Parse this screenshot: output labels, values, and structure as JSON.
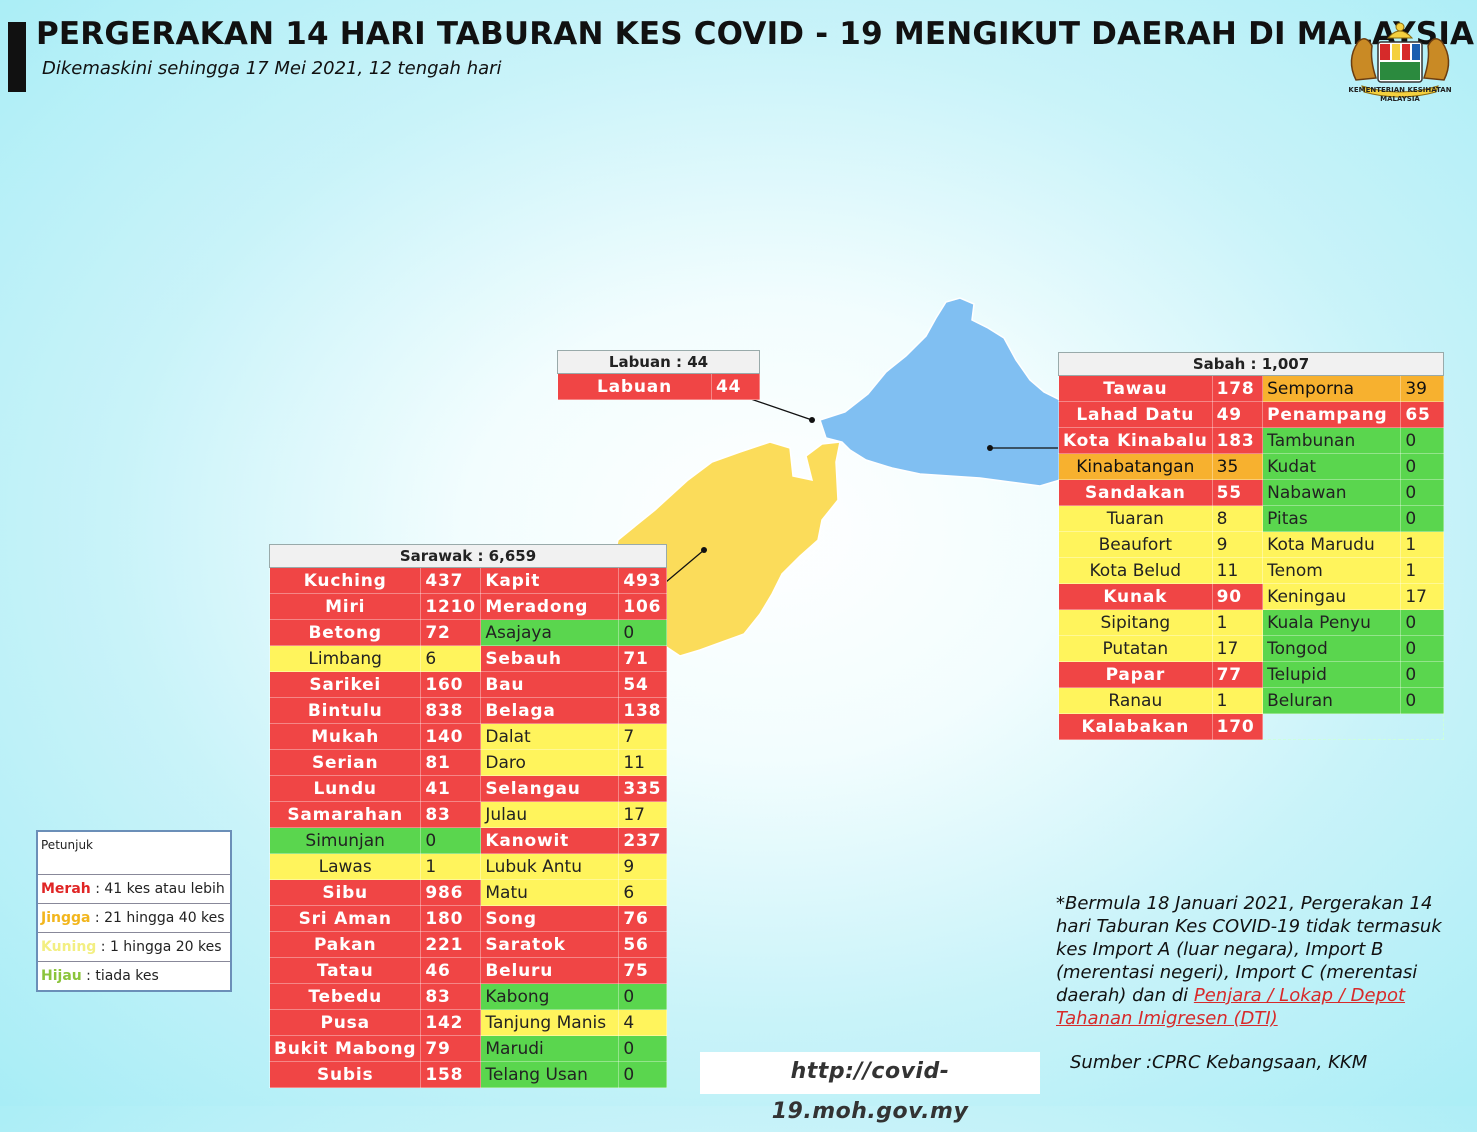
{
  "header": {
    "title": "PERGERAKAN 14 HARI TABURAN KES COVID - 19 MENGIKUT DAERAH DI MALAYSIA",
    "subtitle": "Dikemaskini sehingga 17 Mei 2021, 12 tengah hari",
    "logo_text_1": "KEMENTERIAN KESIHATAN",
    "logo_text_2": "MALAYSIA"
  },
  "colors": {
    "merah": "#f04545",
    "jingga": "#f7b12f",
    "kuning": "#fff45c",
    "hijau": "#5ad64e",
    "sabah_map": "#80bff2",
    "sarawak_map": "#fbdc5a"
  },
  "labuan": {
    "title": "Labuan : 44",
    "rows": [
      {
        "name": "Labuan",
        "cases": "44",
        "level": "red"
      }
    ]
  },
  "sabah": {
    "title": "Sabah : 1,007",
    "rows": [
      [
        {
          "name": "Tawau",
          "cases": "178",
          "level": "red"
        },
        {
          "name": "Semporna",
          "cases": "39",
          "level": "org"
        }
      ],
      [
        {
          "name": "Lahad Datu",
          "cases": "49",
          "level": "red"
        },
        {
          "name": "Penampang",
          "cases": "65",
          "level": "red"
        }
      ],
      [
        {
          "name": "Kota Kinabalu",
          "cases": "183",
          "level": "red"
        },
        {
          "name": "Tambunan",
          "cases": "0",
          "level": "grn"
        }
      ],
      [
        {
          "name": "Kinabatangan",
          "cases": "35",
          "level": "org"
        },
        {
          "name": "Kudat",
          "cases": "0",
          "level": "grn"
        }
      ],
      [
        {
          "name": "Sandakan",
          "cases": "55",
          "level": "red"
        },
        {
          "name": "Nabawan",
          "cases": "0",
          "level": "grn"
        }
      ],
      [
        {
          "name": "Tuaran",
          "cases": "8",
          "level": "yel"
        },
        {
          "name": "Pitas",
          "cases": "0",
          "level": "grn"
        }
      ],
      [
        {
          "name": "Beaufort",
          "cases": "9",
          "level": "yel"
        },
        {
          "name": "Kota Marudu",
          "cases": "1",
          "level": "yel"
        }
      ],
      [
        {
          "name": "Kota Belud",
          "cases": "11",
          "level": "yel"
        },
        {
          "name": "Tenom",
          "cases": "1",
          "level": "yel"
        }
      ],
      [
        {
          "name": "Kunak",
          "cases": "90",
          "level": "red"
        },
        {
          "name": "Keningau",
          "cases": "17",
          "level": "yel"
        }
      ],
      [
        {
          "name": "Sipitang",
          "cases": "1",
          "level": "yel"
        },
        {
          "name": "Kuala Penyu",
          "cases": "0",
          "level": "grn"
        }
      ],
      [
        {
          "name": "Putatan",
          "cases": "17",
          "level": "yel"
        },
        {
          "name": "Tongod",
          "cases": "0",
          "level": "grn"
        }
      ],
      [
        {
          "name": "Papar",
          "cases": "77",
          "level": "red"
        },
        {
          "name": "Telupid",
          "cases": "0",
          "level": "grn"
        }
      ],
      [
        {
          "name": "Ranau",
          "cases": "1",
          "level": "yel"
        },
        {
          "name": "Beluran",
          "cases": "0",
          "level": "grn"
        }
      ],
      [
        {
          "name": "Kalabakan",
          "cases": "170",
          "level": "red"
        },
        null
      ]
    ]
  },
  "sarawak": {
    "title": "Sarawak : 6,659",
    "rows": [
      [
        {
          "name": "Kuching",
          "cases": "437",
          "level": "red"
        },
        {
          "name": "Kapit",
          "cases": "493",
          "level": "red"
        }
      ],
      [
        {
          "name": "Miri",
          "cases": "1210",
          "level": "red"
        },
        {
          "name": "Meradong",
          "cases": "106",
          "level": "red"
        }
      ],
      [
        {
          "name": "Betong",
          "cases": "72",
          "level": "red"
        },
        {
          "name": "Asajaya",
          "cases": "0",
          "level": "grn"
        }
      ],
      [
        {
          "name": "Limbang",
          "cases": "6",
          "level": "yel"
        },
        {
          "name": "Sebauh",
          "cases": "71",
          "level": "red"
        }
      ],
      [
        {
          "name": "Sarikei",
          "cases": "160",
          "level": "red"
        },
        {
          "name": "Bau",
          "cases": "54",
          "level": "red"
        }
      ],
      [
        {
          "name": "Bintulu",
          "cases": "838",
          "level": "red"
        },
        {
          "name": "Belaga",
          "cases": "138",
          "level": "red"
        }
      ],
      [
        {
          "name": "Mukah",
          "cases": "140",
          "level": "red"
        },
        {
          "name": "Dalat",
          "cases": "7",
          "level": "yel"
        }
      ],
      [
        {
          "name": "Serian",
          "cases": "81",
          "level": "red"
        },
        {
          "name": "Daro",
          "cases": "11",
          "level": "yel"
        }
      ],
      [
        {
          "name": "Lundu",
          "cases": "41",
          "level": "red"
        },
        {
          "name": "Selangau",
          "cases": "335",
          "level": "red"
        }
      ],
      [
        {
          "name": "Samarahan",
          "cases": "83",
          "level": "red"
        },
        {
          "name": "Julau",
          "cases": "17",
          "level": "yel"
        }
      ],
      [
        {
          "name": "Simunjan",
          "cases": "0",
          "level": "grn"
        },
        {
          "name": "Kanowit",
          "cases": "237",
          "level": "red"
        }
      ],
      [
        {
          "name": "Lawas",
          "cases": "1",
          "level": "yel"
        },
        {
          "name": "Lubuk Antu",
          "cases": "9",
          "level": "yel"
        }
      ],
      [
        {
          "name": "Sibu",
          "cases": "986",
          "level": "red"
        },
        {
          "name": "Matu",
          "cases": "6",
          "level": "yel"
        }
      ],
      [
        {
          "name": "Sri Aman",
          "cases": "180",
          "level": "red"
        },
        {
          "name": "Song",
          "cases": "76",
          "level": "red"
        }
      ],
      [
        {
          "name": "Pakan",
          "cases": "221",
          "level": "red"
        },
        {
          "name": "Saratok",
          "cases": "56",
          "level": "red"
        }
      ],
      [
        {
          "name": "Tatau",
          "cases": "46",
          "level": "red"
        },
        {
          "name": "Beluru",
          "cases": "75",
          "level": "red"
        }
      ],
      [
        {
          "name": "Tebedu",
          "cases": "83",
          "level": "red"
        },
        {
          "name": "Kabong",
          "cases": "0",
          "level": "grn"
        }
      ],
      [
        {
          "name": "Pusa",
          "cases": "142",
          "level": "red"
        },
        {
          "name": "Tanjung Manis",
          "cases": "4",
          "level": "yel"
        }
      ],
      [
        {
          "name": "Bukit Mabong",
          "cases": "79",
          "level": "red"
        },
        {
          "name": "Marudi",
          "cases": "0",
          "level": "grn"
        }
      ],
      [
        {
          "name": "Subis",
          "cases": "158",
          "level": "red"
        },
        {
          "name": "Telang Usan",
          "cases": "0",
          "level": "grn"
        }
      ]
    ]
  },
  "legend": {
    "title": "Petunjuk",
    "items": [
      {
        "term": "Merah",
        "desc": " : 41 kes atau lebih",
        "color": "#e02525"
      },
      {
        "term": "Jingga",
        "desc": " : 21 hingga 40 kes",
        "color": "#f2b61e"
      },
      {
        "term": "Kuning",
        "desc": " : 1 hingga 20 kes",
        "color": "#f3ef82"
      },
      {
        "term": "Hijau",
        "desc": " : tiada kes",
        "color": "#8bc43c"
      }
    ]
  },
  "note": {
    "text": "*Bermula 18 Januari 2021, Pergerakan 14 hari Taburan Kes COVID-19 tidak termasuk kes Import A (luar negara), Import B (merentasi negeri), Import C (merentasi daerah) dan di ",
    "link": "Penjara / Lokap / Depot Tahanan Imigresen (DTI)"
  },
  "url": "http://covid-19.moh.gov.my",
  "source": "Sumber :CPRC Kebangsaan,  KKM"
}
